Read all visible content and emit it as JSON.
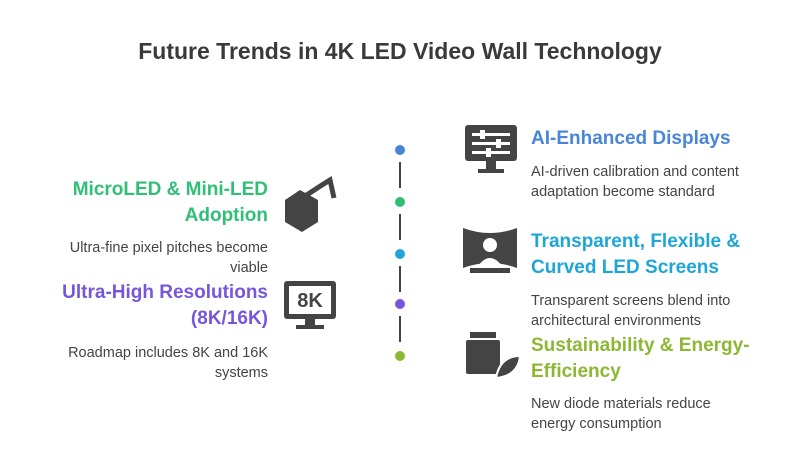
{
  "title": "Future Trends in 4K LED Video Wall Technology",
  "left_items": [
    {
      "title_lines": [
        "MicroLED & Mini-LED",
        "Adoption"
      ],
      "description_lines": [
        "Ultra-fine pixel pitches become",
        "viable"
      ],
      "color": "#2fbf76"
    },
    {
      "title_lines": [
        "Ultra-High Resolutions",
        "(8K/16K)"
      ],
      "description_lines": [
        "Roadmap includes 8K and 16K",
        "systems"
      ],
      "color": "#7656dc",
      "icon_text": "8K"
    }
  ],
  "right_items": [
    {
      "title_lines": [
        "AI-Enhanced Displays"
      ],
      "description_lines": [
        "AI-driven calibration and content",
        "adaptation become standard"
      ],
      "color": "#4a86d6"
    },
    {
      "title_lines": [
        "Transparent, Flexible &",
        "Curved LED Screens"
      ],
      "description_lines": [
        "Transparent screens blend into",
        "architectural environments"
      ],
      "color": "#1ea6d8"
    },
    {
      "title_lines": [
        "Sustainability & Energy-",
        "Efficiency"
      ],
      "description_lines": [
        "New diode materials reduce",
        "energy consumption"
      ],
      "color": "#8cb834"
    }
  ]
}
